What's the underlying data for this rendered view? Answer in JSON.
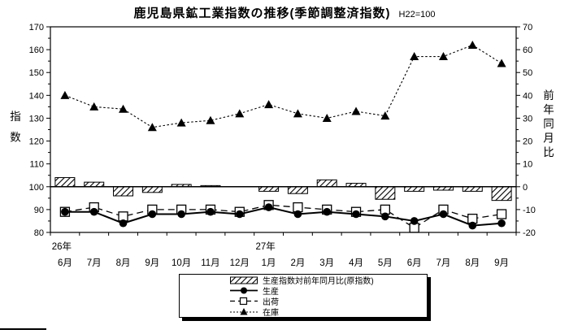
{
  "title": "鹿児島県鉱工業指数の推移(季節調整済指数)",
  "subtitle": "H22=100",
  "left_axis_label": "指数",
  "right_axis_label": "前年同月比",
  "chart_data": {
    "type": "bar",
    "subtype": "bar-line-combo",
    "categories": [
      "6月",
      "7月",
      "8月",
      "9月",
      "10月",
      "11月",
      "12月",
      "1月",
      "2月",
      "3月",
      "4月",
      "5月",
      "6月",
      "7月",
      "8月",
      "9月"
    ],
    "year_labels": [
      {
        "index": 0,
        "label": "26年"
      },
      {
        "index": 7,
        "label": "27年"
      }
    ],
    "left_axis": {
      "title": "指数",
      "min": 80,
      "max": 170,
      "tick_interval": 10,
      "minor_interval": 5
    },
    "right_axis": {
      "title": "前年同月比",
      "min": -20,
      "max": 70,
      "tick_interval": 10,
      "minor_interval": 5
    },
    "grid": false,
    "legend_position": "bottom",
    "series": [
      {
        "name": "生産指数対前年同月比(原指数)",
        "type": "bar",
        "axis": "right",
        "style": "hatched",
        "values": [
          4,
          2,
          -4,
          -2.5,
          1,
          0.5,
          0,
          -2,
          -3,
          3,
          1.5,
          -5.5,
          -2,
          -1.5,
          -2,
          -6
        ]
      },
      {
        "name": "生産",
        "type": "line",
        "axis": "left",
        "marker": "filled-circle",
        "line_style": "solid",
        "values": [
          89,
          89,
          84,
          88,
          88,
          89,
          88,
          91,
          88,
          89,
          88,
          87,
          85,
          88,
          83,
          84
        ]
      },
      {
        "name": "出荷",
        "type": "line",
        "axis": "left",
        "marker": "open-square",
        "line_style": "dashed",
        "values": [
          89,
          91,
          87,
          90,
          90,
          90,
          89,
          92,
          91,
          90,
          89,
          90,
          82,
          90,
          86,
          88
        ]
      },
      {
        "name": "在庫",
        "type": "line",
        "axis": "left",
        "marker": "filled-triangle",
        "line_style": "dotted",
        "values": [
          140,
          135,
          134,
          126,
          128,
          129,
          132,
          136,
          132,
          130,
          133,
          131,
          157,
          157,
          162,
          154
        ]
      }
    ],
    "colors": {
      "foreground": "#000000",
      "background": "#ffffff"
    }
  },
  "legend": {
    "items": [
      {
        "label": "生産指数対前年同月比(原指数)",
        "swatch": "hatched-bar"
      },
      {
        "label": "生産",
        "swatch": "solid-line-filled-circle"
      },
      {
        "label": "出荷",
        "swatch": "dashed-line-open-square"
      },
      {
        "label": "在庫",
        "swatch": "dotted-line-filled-triangle"
      }
    ]
  }
}
